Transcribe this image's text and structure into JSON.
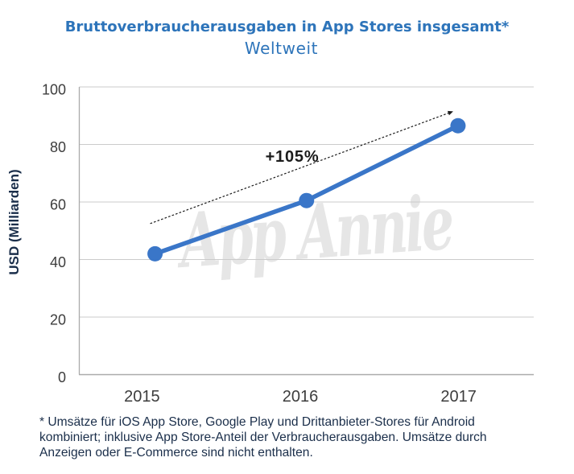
{
  "chart_data": {
    "type": "line",
    "title": "Bruttoverbraucherausgaben in App Stores insgesamt*",
    "subtitle": "Weltweit",
    "ylabel": "USD (Milliarden)",
    "categories": [
      "2015",
      "2016",
      "2017"
    ],
    "series": [
      {
        "name": "Bruttoverbraucherausgaben",
        "values": [
          42,
          60.5,
          86.5
        ]
      }
    ],
    "ylim": [
      0,
      100
    ],
    "yticks": [
      0,
      20,
      40,
      60,
      80,
      100
    ],
    "grid": "horizontal",
    "legend": "none",
    "annotation": {
      "label": "+105%",
      "from_category": "2015",
      "from_value": 52.5,
      "to_category": "2017",
      "to_value": 91.5
    },
    "watermark": "App Annie"
  },
  "footnote": {
    "lines": [
      "* Umsätze für iOS App Store, Google Play und Drittanbieter-Stores für Android",
      "kombiniert; inklusive App Store-Anteil der Verbraucherausgaben. Umsätze durch",
      "Anzeigen oder E-Commerce sind nicht enthalten."
    ]
  },
  "colors": {
    "title": "#2d74ba",
    "line": "#3a76c8",
    "axis": "#ababab",
    "grid": "#cbcbcb",
    "tick_text": "#3d3d3d",
    "footnote_text": "#1a2e4a",
    "annotation": "#1b1b1b",
    "watermark": "#e6e6e6"
  }
}
